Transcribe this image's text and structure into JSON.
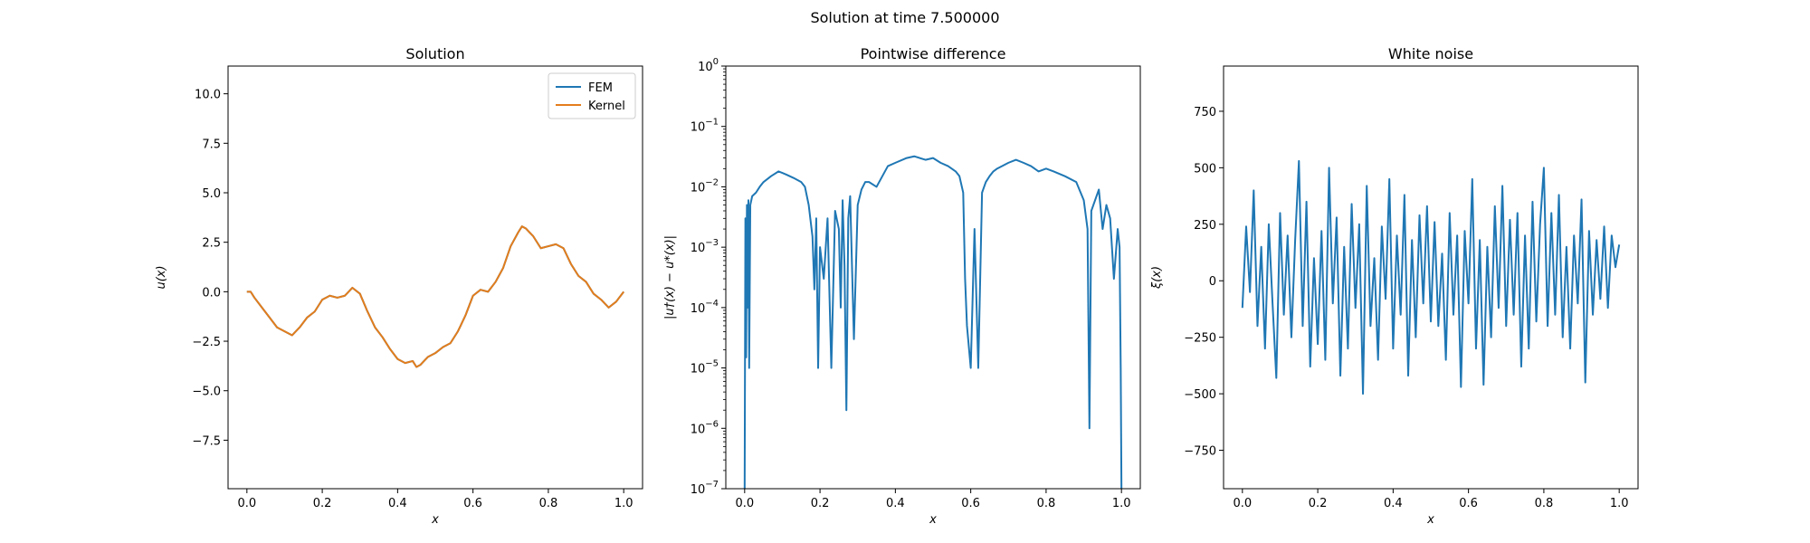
{
  "figure": {
    "suptitle": "Solution at time 7.500000"
  },
  "colors": {
    "fem": "#1f77b4",
    "kernel": "#e37d1c",
    "axis": "#000000",
    "legend_border": "#cccccc"
  },
  "chart_data": [
    {
      "type": "line",
      "title": "Solution",
      "xlabel": "x",
      "ylabel": "u(x)",
      "xlim": [
        -0.05,
        1.05
      ],
      "ylim": [
        -9.95,
        11.4
      ],
      "xticks": [
        0.0,
        0.2,
        0.4,
        0.6,
        0.8,
        1.0
      ],
      "xtick_labels": [
        "0.0",
        "0.2",
        "0.4",
        "0.6",
        "0.8",
        "1.0"
      ],
      "yticks": [
        -7.5,
        -5.0,
        -2.5,
        0.0,
        2.5,
        5.0,
        7.5,
        10.0
      ],
      "ytick_labels": [
        "−7.5",
        "−5.0",
        "−2.5",
        "0.0",
        "2.5",
        "5.0",
        "7.5",
        "10.0"
      ],
      "legend": {
        "position": "upper right",
        "entries": [
          "FEM",
          "Kernel"
        ]
      },
      "grid": false,
      "series": [
        {
          "name": "FEM",
          "x": [
            0.0,
            0.01,
            0.02,
            0.04,
            0.06,
            0.08,
            0.1,
            0.12,
            0.14,
            0.16,
            0.18,
            0.2,
            0.22,
            0.24,
            0.26,
            0.28,
            0.3,
            0.32,
            0.34,
            0.36,
            0.38,
            0.4,
            0.42,
            0.44,
            0.45,
            0.46,
            0.48,
            0.5,
            0.52,
            0.54,
            0.56,
            0.58,
            0.6,
            0.62,
            0.64,
            0.66,
            0.68,
            0.7,
            0.72,
            0.73,
            0.74,
            0.76,
            0.78,
            0.8,
            0.82,
            0.84,
            0.86,
            0.88,
            0.9,
            0.92,
            0.94,
            0.96,
            0.98,
            1.0
          ],
          "y": [
            0.0,
            0.0,
            -0.3,
            -0.8,
            -1.3,
            -1.8,
            -2.0,
            -2.2,
            -1.8,
            -1.3,
            -1.0,
            -0.4,
            -0.2,
            -0.3,
            -0.2,
            0.2,
            -0.1,
            -1.0,
            -1.8,
            -2.3,
            -2.9,
            -3.4,
            -3.6,
            -3.5,
            -3.8,
            -3.7,
            -3.3,
            -3.1,
            -2.8,
            -2.6,
            -2.0,
            -1.2,
            -0.2,
            0.1,
            0.0,
            0.5,
            1.2,
            2.3,
            3.0,
            3.3,
            3.2,
            2.8,
            2.2,
            2.3,
            2.4,
            2.2,
            1.4,
            0.8,
            0.5,
            -0.1,
            -0.4,
            -0.8,
            -0.5,
            0.0
          ]
        },
        {
          "name": "Kernel",
          "x": [
            0.0,
            0.01,
            0.02,
            0.04,
            0.06,
            0.08,
            0.1,
            0.12,
            0.14,
            0.16,
            0.18,
            0.2,
            0.22,
            0.24,
            0.26,
            0.28,
            0.3,
            0.32,
            0.34,
            0.36,
            0.38,
            0.4,
            0.42,
            0.44,
            0.45,
            0.46,
            0.48,
            0.5,
            0.52,
            0.54,
            0.56,
            0.58,
            0.6,
            0.62,
            0.64,
            0.66,
            0.68,
            0.7,
            0.72,
            0.73,
            0.74,
            0.76,
            0.78,
            0.8,
            0.82,
            0.84,
            0.86,
            0.88,
            0.9,
            0.92,
            0.94,
            0.96,
            0.98,
            1.0
          ],
          "y": [
            0.0,
            0.0,
            -0.3,
            -0.8,
            -1.3,
            -1.8,
            -2.0,
            -2.2,
            -1.8,
            -1.3,
            -1.0,
            -0.4,
            -0.2,
            -0.3,
            -0.2,
            0.2,
            -0.1,
            -1.0,
            -1.8,
            -2.3,
            -2.9,
            -3.4,
            -3.6,
            -3.5,
            -3.8,
            -3.7,
            -3.3,
            -3.1,
            -2.8,
            -2.6,
            -2.0,
            -1.2,
            -0.2,
            0.1,
            0.0,
            0.5,
            1.2,
            2.3,
            3.0,
            3.3,
            3.2,
            2.8,
            2.2,
            2.3,
            2.4,
            2.2,
            1.4,
            0.8,
            0.5,
            -0.1,
            -0.4,
            -0.8,
            -0.5,
            0.0
          ]
        }
      ]
    },
    {
      "type": "line",
      "title": "Pointwise difference",
      "xlabel": "x",
      "ylabel": "|u†(x) − u*(x)|",
      "yscale": "log",
      "xlim": [
        -0.05,
        1.05
      ],
      "ylim": [
        1e-07,
        1
      ],
      "xticks": [
        0.0,
        0.2,
        0.4,
        0.6,
        0.8,
        1.0
      ],
      "xtick_labels": [
        "0.0",
        "0.2",
        "0.4",
        "0.6",
        "0.8",
        "1.0"
      ],
      "yticks": [
        1e-07,
        1e-06,
        1e-05,
        0.0001,
        0.001,
        0.01,
        0.1,
        1
      ],
      "ytick_exponents": [
        "−7",
        "−6",
        "−5",
        "−4",
        "−3",
        "−2",
        "−1",
        "0"
      ],
      "grid": false,
      "series": [
        {
          "x": [
            0.0,
            0.002,
            0.004,
            0.006,
            0.008,
            0.01,
            0.012,
            0.015,
            0.02,
            0.03,
            0.04,
            0.05,
            0.07,
            0.09,
            0.1,
            0.11,
            0.13,
            0.15,
            0.16,
            0.17,
            0.18,
            0.185,
            0.19,
            0.195,
            0.2,
            0.21,
            0.22,
            0.23,
            0.24,
            0.25,
            0.255,
            0.26,
            0.265,
            0.27,
            0.275,
            0.28,
            0.29,
            0.3,
            0.31,
            0.32,
            0.33,
            0.35,
            0.38,
            0.4,
            0.43,
            0.45,
            0.48,
            0.5,
            0.52,
            0.54,
            0.56,
            0.57,
            0.58,
            0.585,
            0.59,
            0.6,
            0.61,
            0.62,
            0.63,
            0.64,
            0.65,
            0.66,
            0.67,
            0.7,
            0.72,
            0.74,
            0.76,
            0.78,
            0.8,
            0.82,
            0.85,
            0.88,
            0.9,
            0.91,
            0.915,
            0.92,
            0.93,
            0.94,
            0.95,
            0.96,
            0.97,
            0.98,
            0.99,
            0.995,
            0.998,
            1.0
          ],
          "y": [
            1e-07,
            0.003,
            1.5e-05,
            0.005,
            0.0001,
            0.006,
            1e-05,
            0.005,
            0.007,
            0.008,
            0.01,
            0.012,
            0.015,
            0.018,
            0.017,
            0.016,
            0.014,
            0.012,
            0.01,
            0.005,
            0.0015,
            0.0002,
            0.003,
            1e-05,
            0.001,
            0.0003,
            0.003,
            1e-05,
            0.004,
            0.002,
            0.0001,
            0.006,
            0.0005,
            2e-06,
            0.003,
            0.007,
            3e-05,
            0.005,
            0.009,
            0.012,
            0.012,
            0.01,
            0.022,
            0.025,
            0.03,
            0.032,
            0.028,
            0.03,
            0.025,
            0.022,
            0.018,
            0.015,
            0.008,
            0.0003,
            5e-05,
            1e-05,
            0.002,
            1e-05,
            0.008,
            0.012,
            0.015,
            0.018,
            0.02,
            0.025,
            0.028,
            0.025,
            0.022,
            0.018,
            0.02,
            0.018,
            0.015,
            0.012,
            0.006,
            0.002,
            1e-06,
            0.004,
            0.006,
            0.009,
            0.002,
            0.005,
            0.003,
            0.0003,
            0.002,
            0.001,
            1e-05,
            1e-07
          ]
        }
      ]
    },
    {
      "type": "line",
      "title": "White noise",
      "xlabel": "x",
      "ylabel": "ξ(x)",
      "xlim": [
        -0.05,
        1.05
      ],
      "ylim": [
        -920,
        950
      ],
      "xticks": [
        0.0,
        0.2,
        0.4,
        0.6,
        0.8,
        1.0
      ],
      "xtick_labels": [
        "0.0",
        "0.2",
        "0.4",
        "0.6",
        "0.8",
        "1.0"
      ],
      "yticks": [
        -750,
        -500,
        -250,
        0,
        250,
        500,
        750
      ],
      "ytick_labels": [
        "−750",
        "−500",
        "−250",
        "0",
        "250",
        "500",
        "750"
      ],
      "grid": false,
      "series": [
        {
          "x": [
            0.0,
            0.01,
            0.02,
            0.03,
            0.04,
            0.05,
            0.06,
            0.07,
            0.08,
            0.09,
            0.1,
            0.11,
            0.12,
            0.13,
            0.14,
            0.15,
            0.16,
            0.17,
            0.18,
            0.19,
            0.2,
            0.21,
            0.22,
            0.23,
            0.24,
            0.25,
            0.26,
            0.27,
            0.28,
            0.29,
            0.3,
            0.31,
            0.32,
            0.33,
            0.34,
            0.35,
            0.36,
            0.37,
            0.38,
            0.39,
            0.4,
            0.41,
            0.42,
            0.43,
            0.44,
            0.45,
            0.46,
            0.47,
            0.48,
            0.49,
            0.5,
            0.51,
            0.52,
            0.53,
            0.54,
            0.55,
            0.56,
            0.57,
            0.58,
            0.59,
            0.6,
            0.61,
            0.62,
            0.63,
            0.64,
            0.65,
            0.66,
            0.67,
            0.68,
            0.69,
            0.7,
            0.71,
            0.72,
            0.73,
            0.74,
            0.75,
            0.76,
            0.77,
            0.78,
            0.79,
            0.8,
            0.81,
            0.82,
            0.83,
            0.84,
            0.85,
            0.86,
            0.87,
            0.88,
            0.89,
            0.9,
            0.91,
            0.92,
            0.93,
            0.94,
            0.95,
            0.96,
            0.97,
            0.98,
            0.99,
            1.0
          ],
          "y": [
            -120,
            240,
            -50,
            400,
            -200,
            150,
            -300,
            250,
            -100,
            -430,
            300,
            -150,
            200,
            -250,
            180,
            530,
            -200,
            350,
            -380,
            100,
            -280,
            220,
            -350,
            500,
            -100,
            280,
            -420,
            150,
            -300,
            340,
            -120,
            250,
            -500,
            420,
            -200,
            100,
            -350,
            240,
            -80,
            450,
            -300,
            200,
            -150,
            380,
            -420,
            180,
            -250,
            290,
            -100,
            330,
            -180,
            260,
            -200,
            120,
            -350,
            300,
            -150,
            200,
            -470,
            220,
            -100,
            450,
            -300,
            180,
            -460,
            150,
            -250,
            330,
            -120,
            420,
            -200,
            270,
            -150,
            300,
            -380,
            200,
            -300,
            350,
            -180,
            250,
            500,
            -200,
            300,
            -150,
            380,
            -250,
            150,
            -300,
            200,
            -100,
            360,
            -450,
            220,
            -150,
            180,
            -80,
            240,
            -120,
            200,
            60,
            160
          ]
        }
      ]
    }
  ]
}
